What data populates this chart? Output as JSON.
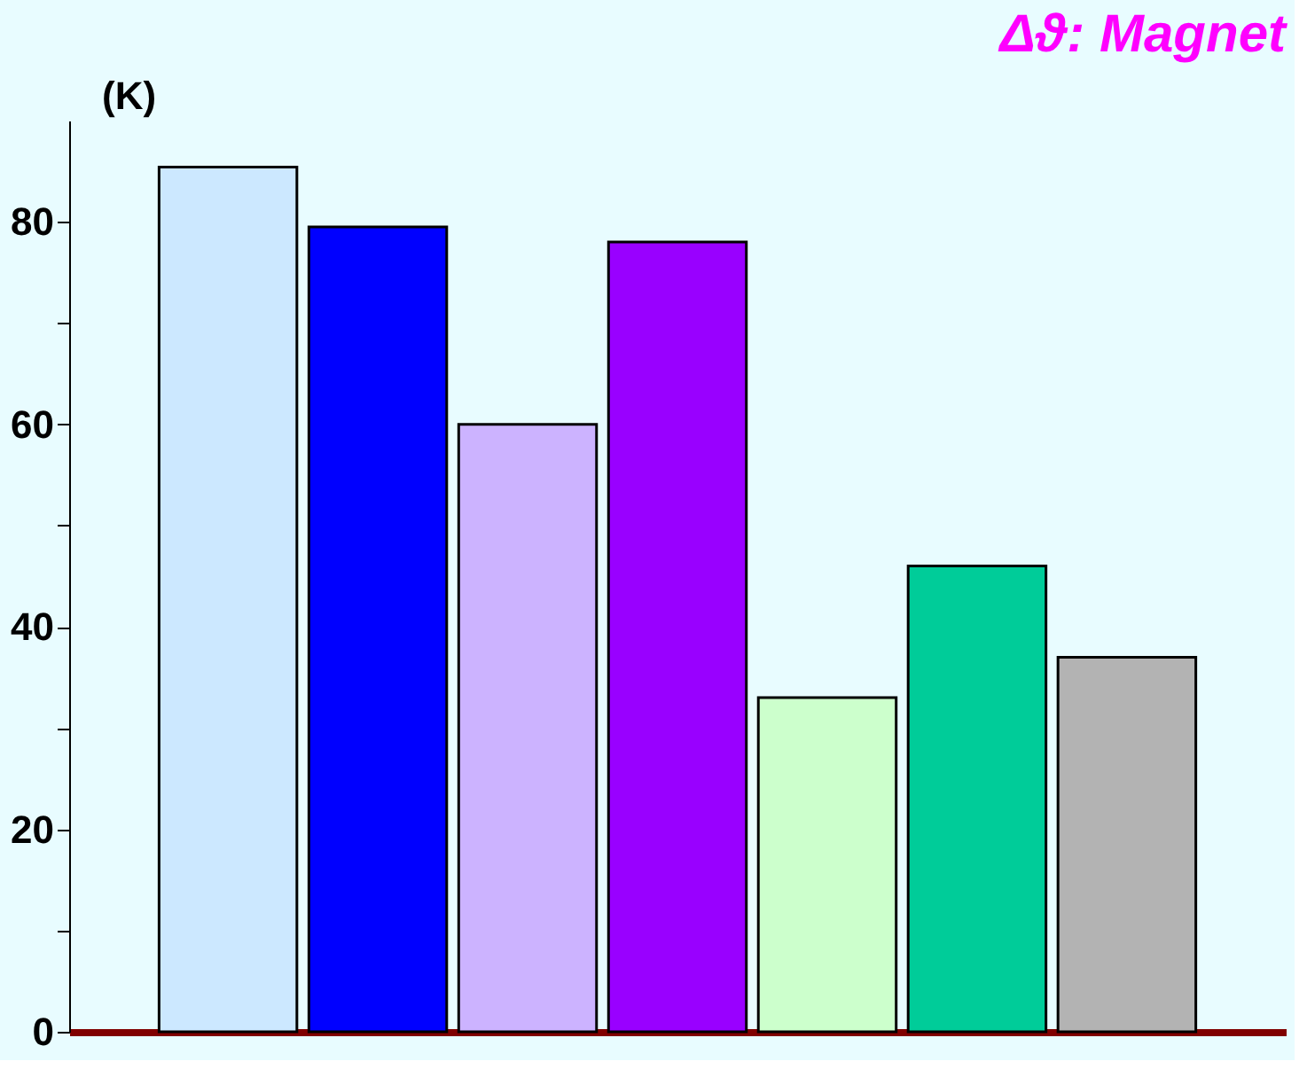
{
  "chart_data": {
    "type": "bar",
    "title": "Δϑ: Magnet",
    "ylabel": "(K)",
    "categories": [
      null,
      null,
      null,
      null,
      null,
      null,
      null
    ],
    "values": [
      85.4,
      79.5,
      60,
      78,
      33,
      46,
      37
    ],
    "colors": [
      "#cce8ff",
      "#0000ff",
      "#ccb3ff",
      "#9900ff",
      "#ccffcc",
      "#00cc99",
      "#b3b3b3"
    ],
    "ylim": [
      0,
      90
    ],
    "yticks": [
      0,
      {
        "value": 10,
        "label": null
      },
      20,
      {
        "value": 30,
        "label": null
      },
      40,
      {
        "value": 50,
        "label": null
      },
      60,
      {
        "value": 70,
        "label": null
      },
      80
    ],
    "grid": false
  }
}
